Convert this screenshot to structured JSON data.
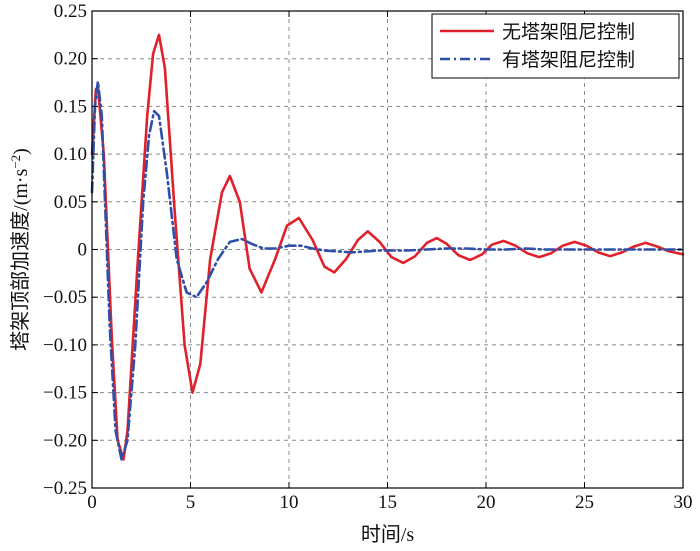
{
  "chart_data": {
    "type": "line",
    "xlabel": "时间/s",
    "ylabel": "塔架顶部加速度/(m·s",
    "ylabel_sup": "−2",
    "ylabel_close": ")",
    "xlim": [
      0,
      30
    ],
    "ylim": [
      -0.25,
      0.25
    ],
    "xticks": [
      0,
      5,
      10,
      15,
      20,
      25,
      30
    ],
    "xtick_labels": [
      "0",
      "5",
      "10",
      "15",
      "20",
      "25",
      "30"
    ],
    "yticks": [
      0.25,
      0.2,
      0.15,
      0.1,
      0.05,
      0,
      -0.05,
      -0.1,
      -0.15,
      -0.2,
      -0.25
    ],
    "ytick_labels": [
      "0.25",
      "0.20",
      "0.15",
      "0.10",
      "0.05",
      "0",
      "−0.05",
      "−0.10",
      "−0.15",
      "−0.20",
      "−0.25"
    ],
    "grid": true,
    "legend_position": "top-right",
    "series": [
      {
        "name": "无塔架阻尼控制",
        "color": "#e0202a",
        "dash": "solid",
        "x": [
          0,
          0.2,
          0.3,
          0.6,
          1.0,
          1.3,
          1.6,
          1.8,
          2.3,
          2.8,
          3.1,
          3.4,
          3.7,
          4.2,
          4.7,
          5.1,
          5.5,
          6.0,
          6.6,
          7.0,
          7.5,
          8.0,
          8.6,
          9.3,
          9.9,
          10.5,
          11.2,
          11.8,
          12.3,
          12.9,
          13.5,
          14.0,
          14.6,
          15.2,
          15.8,
          16.4,
          17.0,
          17.5,
          18.0,
          18.6,
          19.2,
          19.8,
          20.3,
          20.9,
          21.5,
          22.1,
          22.7,
          23.3,
          23.9,
          24.5,
          25.1,
          25.7,
          26.3,
          26.9,
          27.5,
          28.1,
          28.7,
          29.3,
          30.0
        ],
        "y": [
          0.1,
          0.168,
          0.17,
          0.1,
          -0.09,
          -0.2,
          -0.22,
          -0.19,
          -0.02,
          0.14,
          0.205,
          0.225,
          0.19,
          0.04,
          -0.1,
          -0.15,
          -0.12,
          -0.01,
          0.06,
          0.077,
          0.05,
          -0.02,
          -0.045,
          -0.01,
          0.025,
          0.033,
          0.01,
          -0.018,
          -0.024,
          -0.01,
          0.01,
          0.019,
          0.008,
          -0.008,
          -0.014,
          -0.007,
          0.007,
          0.012,
          0.006,
          -0.006,
          -0.011,
          -0.005,
          0.005,
          0.009,
          0.004,
          -0.004,
          -0.008,
          -0.004,
          0.004,
          0.008,
          0.004,
          -0.003,
          -0.007,
          -0.003,
          0.003,
          0.007,
          0.003,
          -0.002,
          -0.005
        ]
      },
      {
        "name": "有塔架阻尼控制",
        "color": "#2f4fa8",
        "dash": "dashdot",
        "x": [
          0,
          0.15,
          0.3,
          0.5,
          0.9,
          1.2,
          1.5,
          1.8,
          2.2,
          2.6,
          2.9,
          3.15,
          3.4,
          3.8,
          4.3,
          4.8,
          5.3,
          5.8,
          6.4,
          7.0,
          7.6,
          8.1,
          8.7,
          9.3,
          10.0,
          10.6,
          11.2,
          11.8,
          12.5,
          13.2,
          13.9,
          14.6,
          15.3,
          16.0,
          17.0,
          18.0,
          19.0,
          20.0,
          21.0,
          22.0,
          23.0,
          24.0,
          25.0,
          26.0,
          27.0,
          28.0,
          29.0,
          30.0
        ],
        "y": [
          0.06,
          0.15,
          0.176,
          0.14,
          -0.08,
          -0.19,
          -0.22,
          -0.2,
          -0.1,
          0.05,
          0.12,
          0.145,
          0.14,
          0.08,
          -0.01,
          -0.045,
          -0.05,
          -0.035,
          -0.01,
          0.008,
          0.011,
          0.006,
          0.001,
          0.001,
          0.004,
          0.004,
          0.001,
          -0.001,
          -0.002,
          -0.003,
          -0.002,
          -0.001,
          -0.001,
          -0.001,
          0.0,
          0.001,
          0.001,
          0.0,
          0.0,
          0.001,
          0.0,
          0.0,
          0.0,
          0.0,
          0.0,
          0.0,
          0.0,
          0.0
        ]
      }
    ]
  }
}
